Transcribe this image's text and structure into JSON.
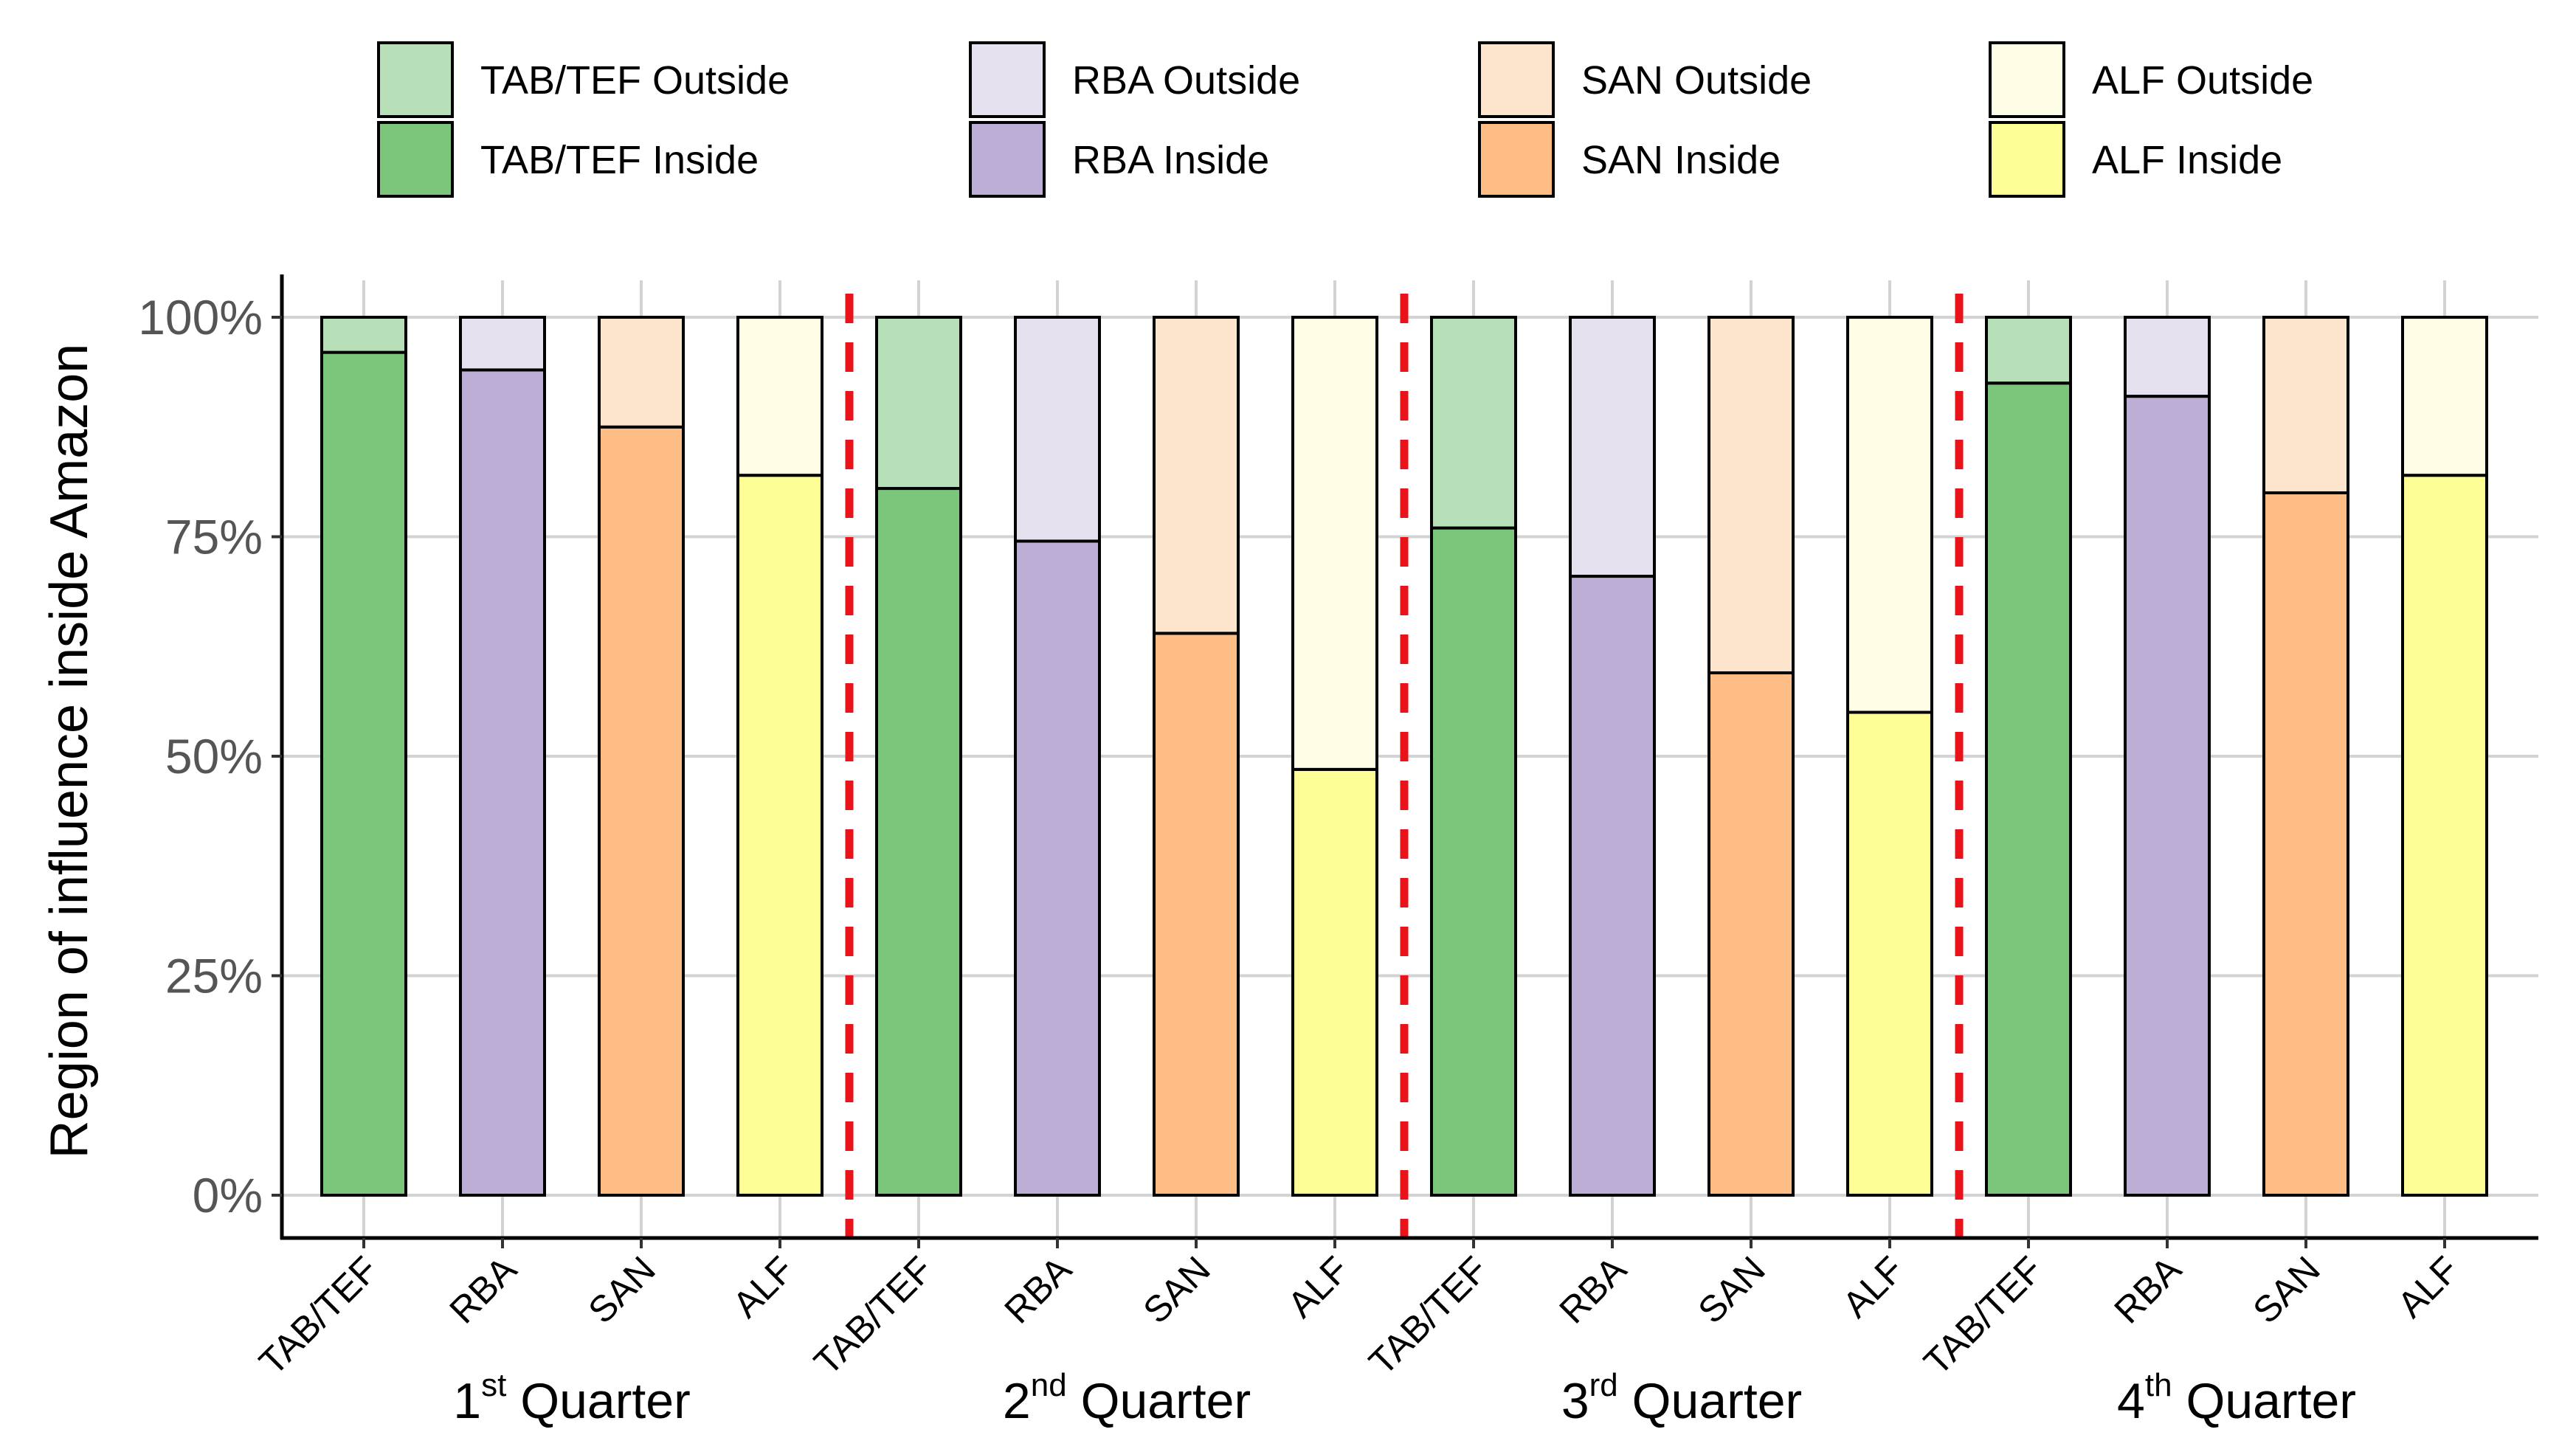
{
  "chart_data": {
    "type": "bar",
    "stacked": true,
    "ylabel": "Region of influence inside Amazon",
    "xlabel": "",
    "ylim": [
      0,
      100
    ],
    "y_ticks": [
      "0%",
      "25%",
      "50%",
      "75%",
      "100%"
    ],
    "y_tick_values": [
      0,
      25,
      50,
      75,
      100
    ],
    "grid": true,
    "legend_placement": "top",
    "legend": [
      {
        "name": "TAB/TEF Outside",
        "color": "#b8e0b8"
      },
      {
        "name": "TAB/TEF Inside",
        "color": "#7cc67c"
      },
      {
        "name": "RBA Outside",
        "color": "#e6e1ef"
      },
      {
        "name": "RBA Inside",
        "color": "#bcaed4"
      },
      {
        "name": "SAN Outside",
        "color": "#fde4cc"
      },
      {
        "name": "SAN Inside",
        "color": "#fdbd84"
      },
      {
        "name": "ALF Outside",
        "color": "#fefee6"
      },
      {
        "name": "ALF Inside",
        "color": "#fefe96"
      }
    ],
    "quarters": [
      {
        "number": "1",
        "suffix": "st",
        "word": "Quarter"
      },
      {
        "number": "2",
        "suffix": "nd",
        "word": "Quarter"
      },
      {
        "number": "3",
        "suffix": "rd",
        "word": "Quarter"
      },
      {
        "number": "4",
        "suffix": "th",
        "word": "Quarter"
      }
    ],
    "categories": [
      "TAB/TEF",
      "RBA",
      "SAN",
      "ALF"
    ],
    "series": [
      {
        "name": "Inside",
        "values": [
          [
            96,
            94,
            87.5,
            82
          ],
          [
            80.5,
            74.5,
            64,
            48.5
          ],
          [
            76,
            70.5,
            59.5,
            55
          ],
          [
            92.5,
            91,
            80,
            82
          ]
        ]
      },
      {
        "name": "Outside",
        "values": [
          [
            4,
            6,
            12.5,
            18
          ],
          [
            19.5,
            25.5,
            36,
            51.5
          ],
          [
            24,
            29.5,
            40.5,
            45
          ],
          [
            7.5,
            9,
            20,
            18
          ]
        ]
      }
    ],
    "colors": {
      "inside": [
        "#7cc67c",
        "#bcaed4",
        "#fdbd84",
        "#fefe96"
      ],
      "outside": [
        "#b8e0b8",
        "#e6e1ef",
        "#fde4cc",
        "#fefee6"
      ],
      "separator": "#e8141a",
      "grid": "#d3d3d3"
    }
  }
}
